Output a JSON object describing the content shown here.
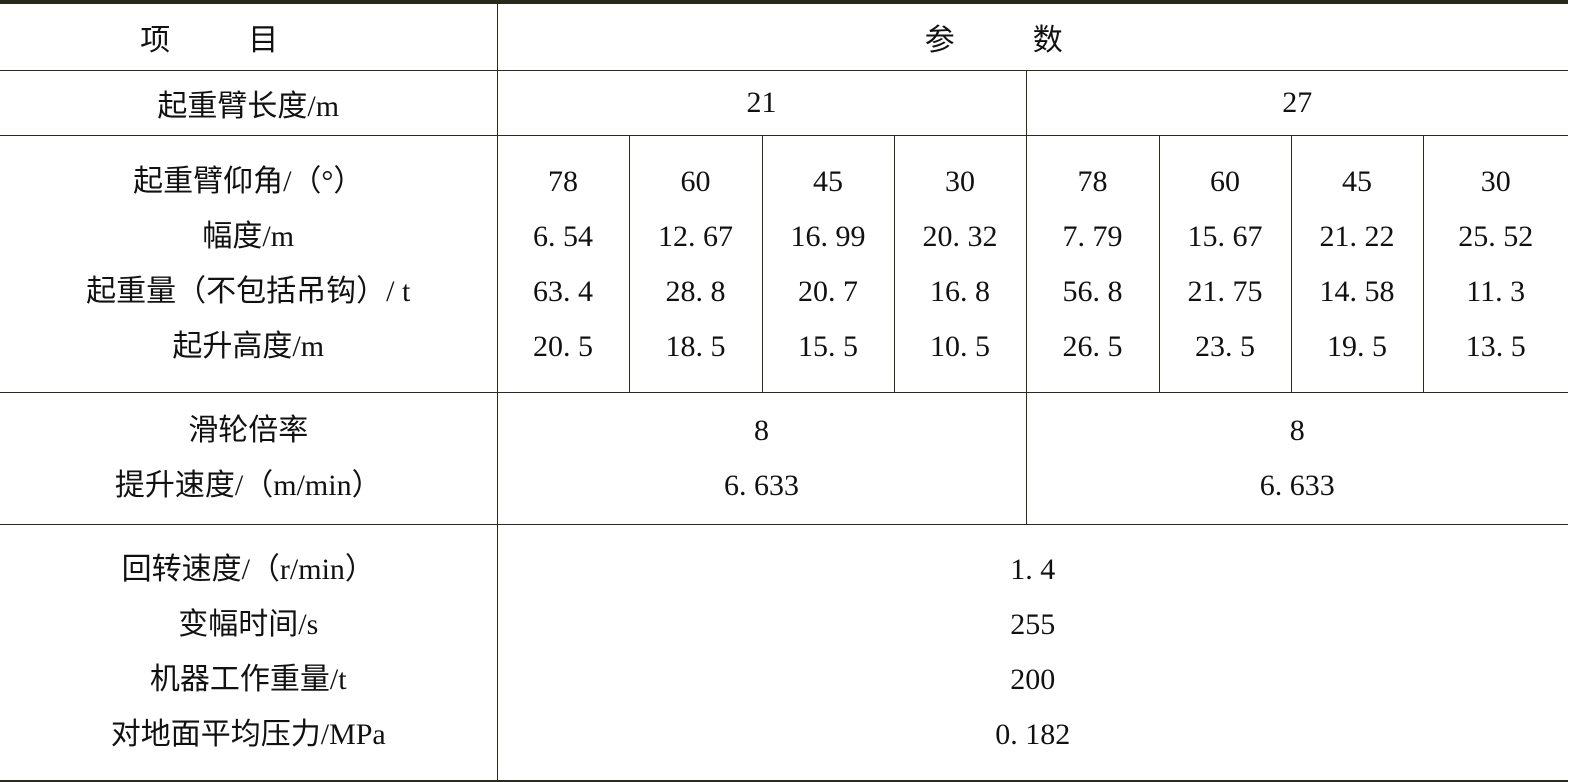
{
  "header": {
    "item": "项目",
    "param": "参数"
  },
  "boom_length": {
    "label": "起重臂长度/m",
    "values": [
      "21",
      "27"
    ]
  },
  "working_labels": [
    "起重臂仰角/（°）",
    "幅度/m",
    "起重量（不包括吊钩）/ t",
    "起升高度/m"
  ],
  "working_columns": [
    [
      "78",
      "6. 54",
      "63. 4",
      "20. 5"
    ],
    [
      "60",
      "12. 67",
      "28. 8",
      "18. 5"
    ],
    [
      "45",
      "16. 99",
      "20. 7",
      "15. 5"
    ],
    [
      "30",
      "20. 32",
      "16. 8",
      "10. 5"
    ],
    [
      "78",
      "7. 79",
      "56. 8",
      "26. 5"
    ],
    [
      "60",
      "15. 67",
      "21. 75",
      "23. 5"
    ],
    [
      "45",
      "21. 22",
      "14. 58",
      "19. 5"
    ],
    [
      "30",
      "25. 52",
      "11. 3",
      "13. 5"
    ]
  ],
  "pulley": {
    "labels": [
      "滑轮倍率",
      "提升速度/（m/min）"
    ],
    "values_21": [
      "8",
      "6. 633"
    ],
    "values_27": [
      "8",
      "6. 633"
    ]
  },
  "general": {
    "labels": [
      "回转速度/（r/min）",
      "变幅时间/s",
      "机器工作重量/t",
      "对地面平均压力/MPa"
    ],
    "values": [
      "1. 4",
      "255",
      "200",
      "0. 182"
    ]
  }
}
